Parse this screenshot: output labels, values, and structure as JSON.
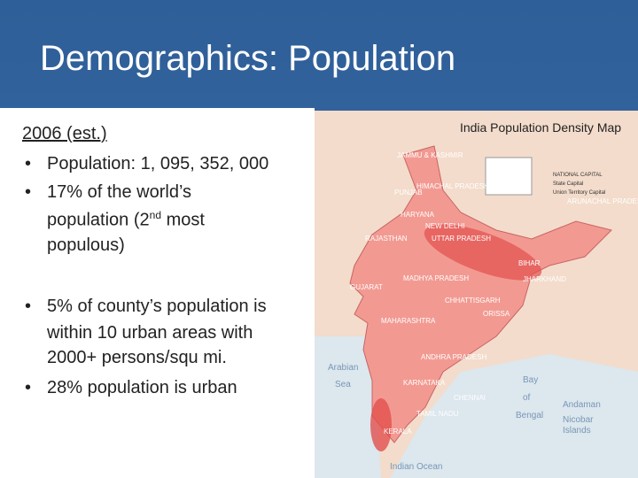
{
  "header": {
    "title": "Demographics: Population"
  },
  "body": {
    "heading": "2006 (est.)",
    "bullets": [
      {
        "lines": [
          "Population: 1, 095, 352, 000"
        ]
      },
      {
        "lines": [
          "17% of the world’s",
          {
            "text": "population (2",
            "sup": "nd",
            "after": " most"
          },
          "populous)"
        ]
      },
      {
        "lines": [
          "5% of county’s population is",
          "within 10 urban areas with",
          "2000+ persons/squ mi."
        ]
      },
      {
        "lines": [
          "28% population is urban"
        ]
      }
    ]
  },
  "map": {
    "title": "India Population Density Map",
    "legend": [
      "NATIONAL CAPITAL",
      "State Capital",
      "Union Territory Capital"
    ],
    "labels": [
      "JAMMU & KASHMIR",
      "HIMACHAL PRADESH",
      "PUNJAB",
      "HARYANA",
      "NEW DELHI",
      "RAJASTHAN",
      "UTTAR PRADESH",
      "BIHAR",
      "GUJARAT",
      "MADHYA PRADESH",
      "JHARKHAND",
      "CHHATTISGARH",
      "MAHARASHTRA",
      "ORISSA",
      "ANDHRA PRADESH",
      "KARNATAKA",
      "TAMIL NADU",
      "KERALA",
      "CHENNAI",
      "ARUNACHAL PRADESH",
      "Arabian",
      "Sea",
      "Bay",
      "of",
      "Bengal",
      "Andaman",
      "Nicobar",
      "Islands",
      "Indian Ocean"
    ]
  }
}
